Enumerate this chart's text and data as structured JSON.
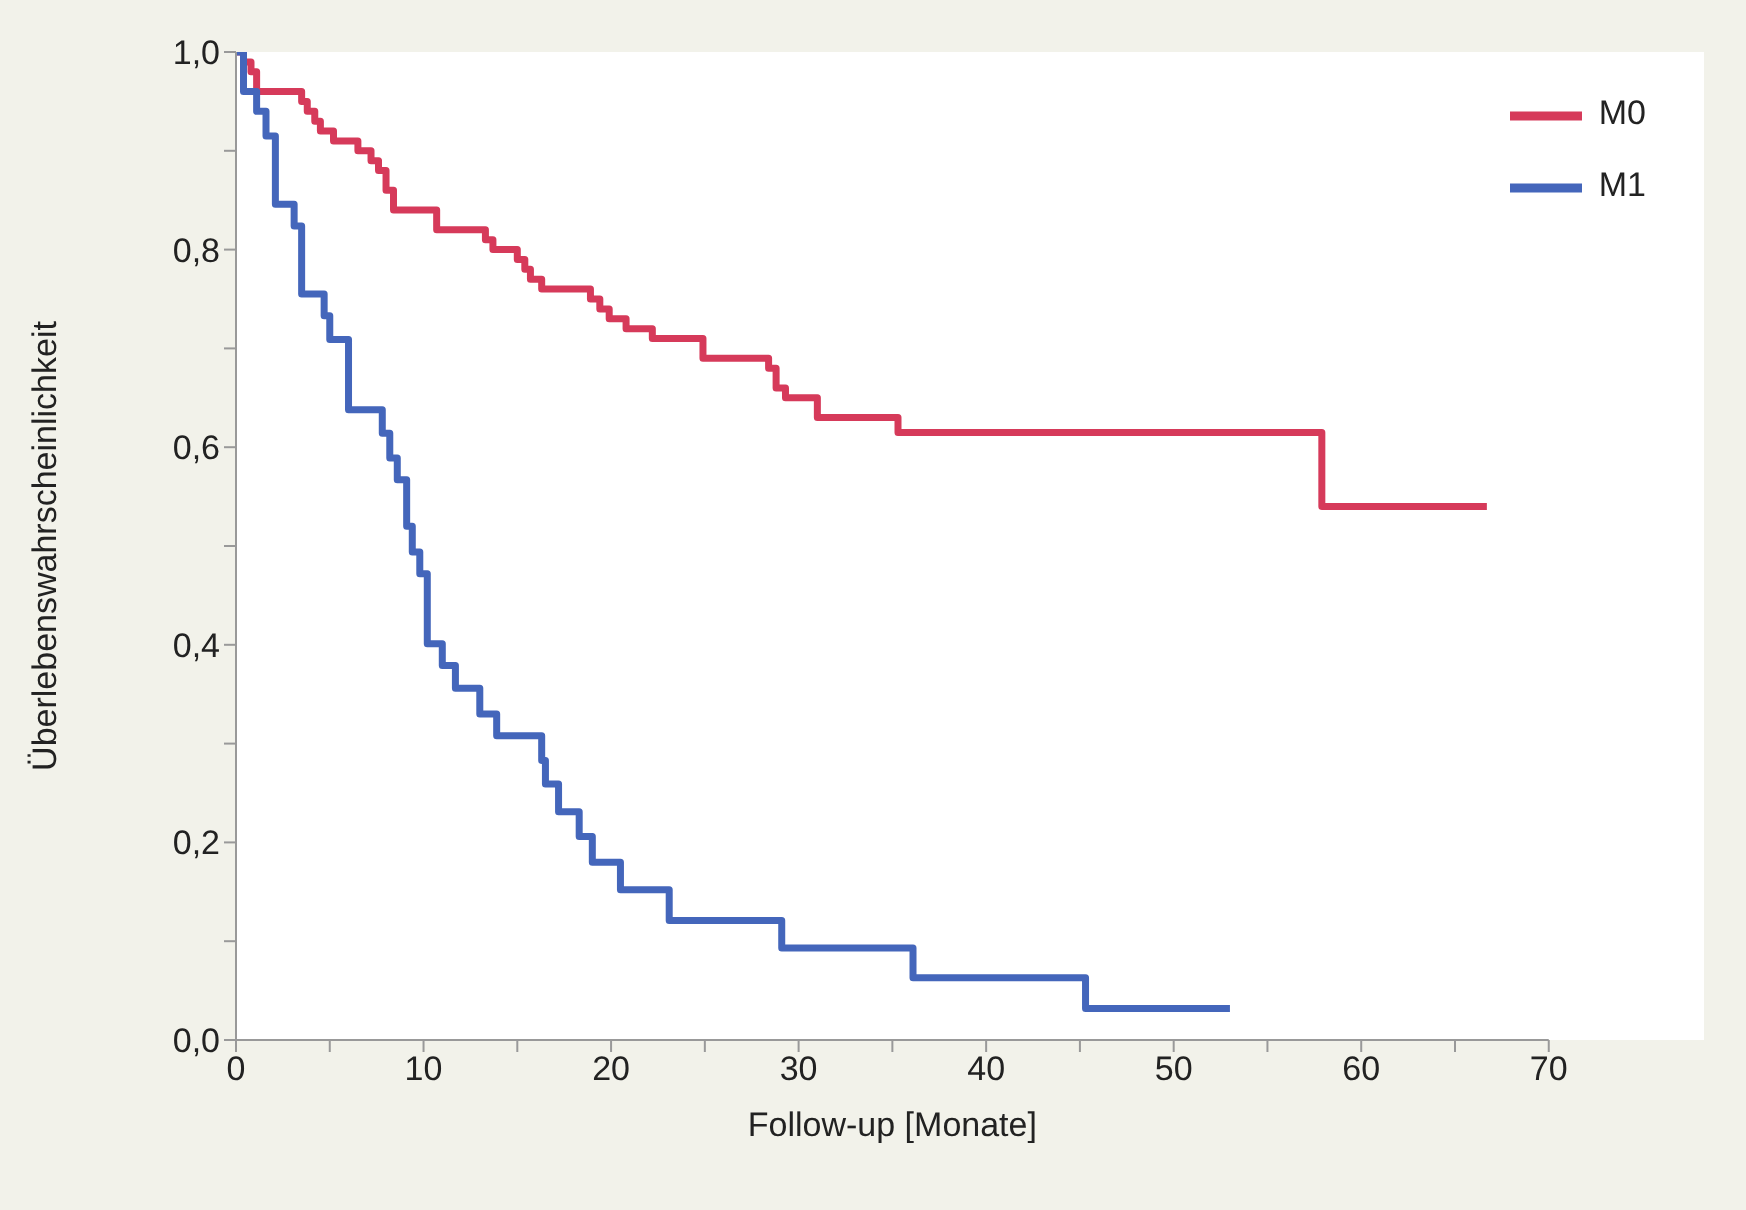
{
  "chart_data": {
    "type": "step",
    "xlabel": "Follow-up [Monate]",
    "ylabel": "Überlebenswahrscheinlichkeit",
    "xlim": [
      0,
      70
    ],
    "ylim": [
      0,
      1
    ],
    "xticks": [
      0,
      {
        "value": 5,
        "label": null
      },
      10,
      {
        "value": 15,
        "label": null
      },
      20,
      {
        "value": 25,
        "label": null
      },
      30,
      {
        "value": 35,
        "label": null
      },
      40,
      {
        "value": 45,
        "label": null
      },
      50,
      {
        "value": 55,
        "label": null
      },
      60,
      {
        "value": 65,
        "label": null
      },
      70
    ],
    "yticks": [
      {
        "value": 0,
        "label": "0,0"
      },
      {
        "value": 0.1,
        "label": null
      },
      {
        "value": 0.2,
        "label": "0,2"
      },
      {
        "value": 0.3,
        "label": null
      },
      {
        "value": 0.4,
        "label": "0,4"
      },
      {
        "value": 0.5,
        "label": null
      },
      {
        "value": 0.6,
        "label": "0,6"
      },
      {
        "value": 0.7,
        "label": null
      },
      {
        "value": 0.8,
        "label": "0,8"
      },
      {
        "value": 0.9,
        "label": null
      },
      {
        "value": 1,
        "label": "1,0"
      }
    ],
    "legend": "top right",
    "line_style": "solid",
    "marker": "none",
    "series": [
      {
        "name": "M0",
        "color": "#d63a5a",
        "x": [
          0,
          0.4,
          0.8,
          1.1,
          3.5,
          3.8,
          4.2,
          4.5,
          5.2,
          6.5,
          7.2,
          7.6,
          8.0,
          8.4,
          10.7,
          13.3,
          13.7,
          15.0,
          15.4,
          15.7,
          16.3,
          18.9,
          19.4,
          19.9,
          20.8,
          22.2,
          24.9,
          28.4,
          28.8,
          29.3,
          31.0,
          35.3,
          57.9,
          66.7
        ],
        "values": [
          1,
          0.99,
          0.98,
          0.96,
          0.95,
          0.94,
          0.93,
          0.92,
          0.91,
          0.9,
          0.89,
          0.88,
          0.86,
          0.84,
          0.82,
          0.81,
          0.8,
          0.79,
          0.78,
          0.77,
          0.76,
          0.75,
          0.74,
          0.73,
          0.72,
          0.71,
          0.69,
          0.68,
          0.66,
          0.65,
          0.63,
          0.615,
          0.54,
          0.54
        ]
      },
      {
        "name": "M1",
        "color": "#4466bb",
        "x": [
          0,
          0.4,
          1.1,
          1.6,
          2.1,
          3.1,
          3.5,
          4.7,
          5.0,
          6.0,
          7.8,
          8.2,
          8.6,
          9.1,
          9.4,
          9.8,
          10.2,
          11.0,
          11.7,
          13.0,
          13.9,
          16.3,
          16.5,
          17.2,
          18.3,
          19.0,
          20.5,
          23.1,
          29.1,
          36.1,
          45.3,
          53.0
        ],
        "values": [
          1,
          0.96,
          0.94,
          0.915,
          0.846,
          0.824,
          0.755,
          0.733,
          0.709,
          0.638,
          0.614,
          0.589,
          0.567,
          0.52,
          0.494,
          0.472,
          0.401,
          0.379,
          0.356,
          0.33,
          0.308,
          0.283,
          0.259,
          0.231,
          0.206,
          0.18,
          0.152,
          0.121,
          0.093,
          0.063,
          0.032,
          0.032
        ]
      }
    ]
  }
}
